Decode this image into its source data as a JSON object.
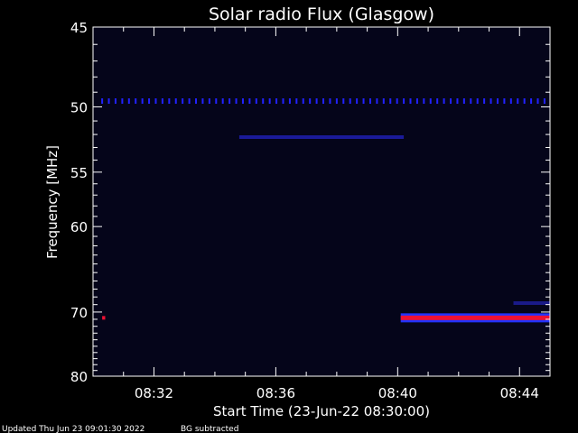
{
  "chart_data": {
    "type": "heatmap",
    "title": "Solar radio Flux (Glasgow)",
    "xlabel": "Start Time (23-Jun-22 08:30:00)",
    "ylabel": "Frequency [MHz]",
    "x_range_minutes": [
      0,
      15
    ],
    "x_ticks": [
      {
        "minute": 2,
        "label": "08:32"
      },
      {
        "minute": 6,
        "label": "08:36"
      },
      {
        "minute": 10,
        "label": "08:40"
      },
      {
        "minute": 14,
        "label": "08:44"
      }
    ],
    "y_range_mhz": [
      45,
      80
    ],
    "y_scale": "reciprocal",
    "y_ticks": [
      45,
      50,
      55,
      60,
      70,
      80
    ],
    "features": [
      {
        "name": "periodic-interference-dots",
        "freq_mhz": 49.6,
        "t_start_min": 0.3,
        "t_end_min": 15,
        "period_min": 0.22,
        "color": "#2222ff"
      },
      {
        "name": "faint-band",
        "freq_mhz": 52.2,
        "t_start_min": 4.8,
        "t_end_min": 10.2,
        "color": "#1a1a99"
      },
      {
        "name": "strong-band",
        "freq_mhz": 70.8,
        "t_start_min": 10.1,
        "t_end_min": 15,
        "color": "#ee1133"
      },
      {
        "name": "spot-start",
        "freq_mhz": 70.8,
        "t_start_min": 0.3,
        "t_end_min": 0.4,
        "color": "#ee1133"
      },
      {
        "name": "faint-band-2",
        "freq_mhz": 68.8,
        "t_start_min": 13.8,
        "t_end_min": 15,
        "color": "#1a1a88"
      }
    ]
  },
  "footer": {
    "updated": "Updated Thu Jun 23 09:01:30 2022",
    "note": "BG subtracted"
  },
  "colors": {
    "background": "#000000",
    "plot_background": "#05051a",
    "axis": "#ffffff"
  }
}
